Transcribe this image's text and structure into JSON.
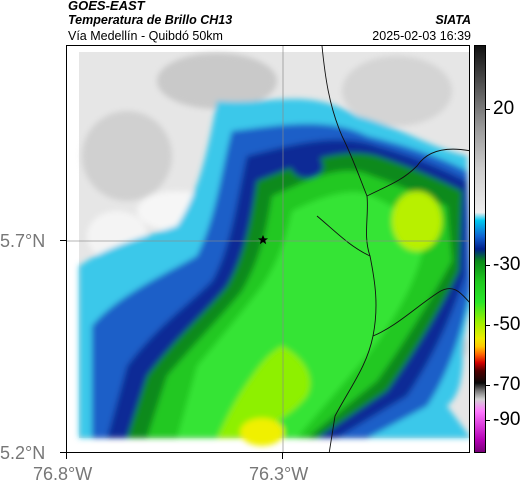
{
  "header": {
    "title": "GOES-EAST",
    "subtitle": "Temperatura de Brillo CH13",
    "location": "Vía Medellín - Quibdó 50km",
    "org": "SIATA",
    "timestamp": "2025-02-03 16:39"
  },
  "map": {
    "latitude_labels": [
      "5.7°N",
      "5.2°N"
    ],
    "longitude_labels": [
      "76.8°W",
      "76.3°W"
    ],
    "marker_icon": "star-icon"
  },
  "colorbar": {
    "labels": [
      "20",
      "-30",
      "-50",
      "-70",
      "-90"
    ]
  }
}
